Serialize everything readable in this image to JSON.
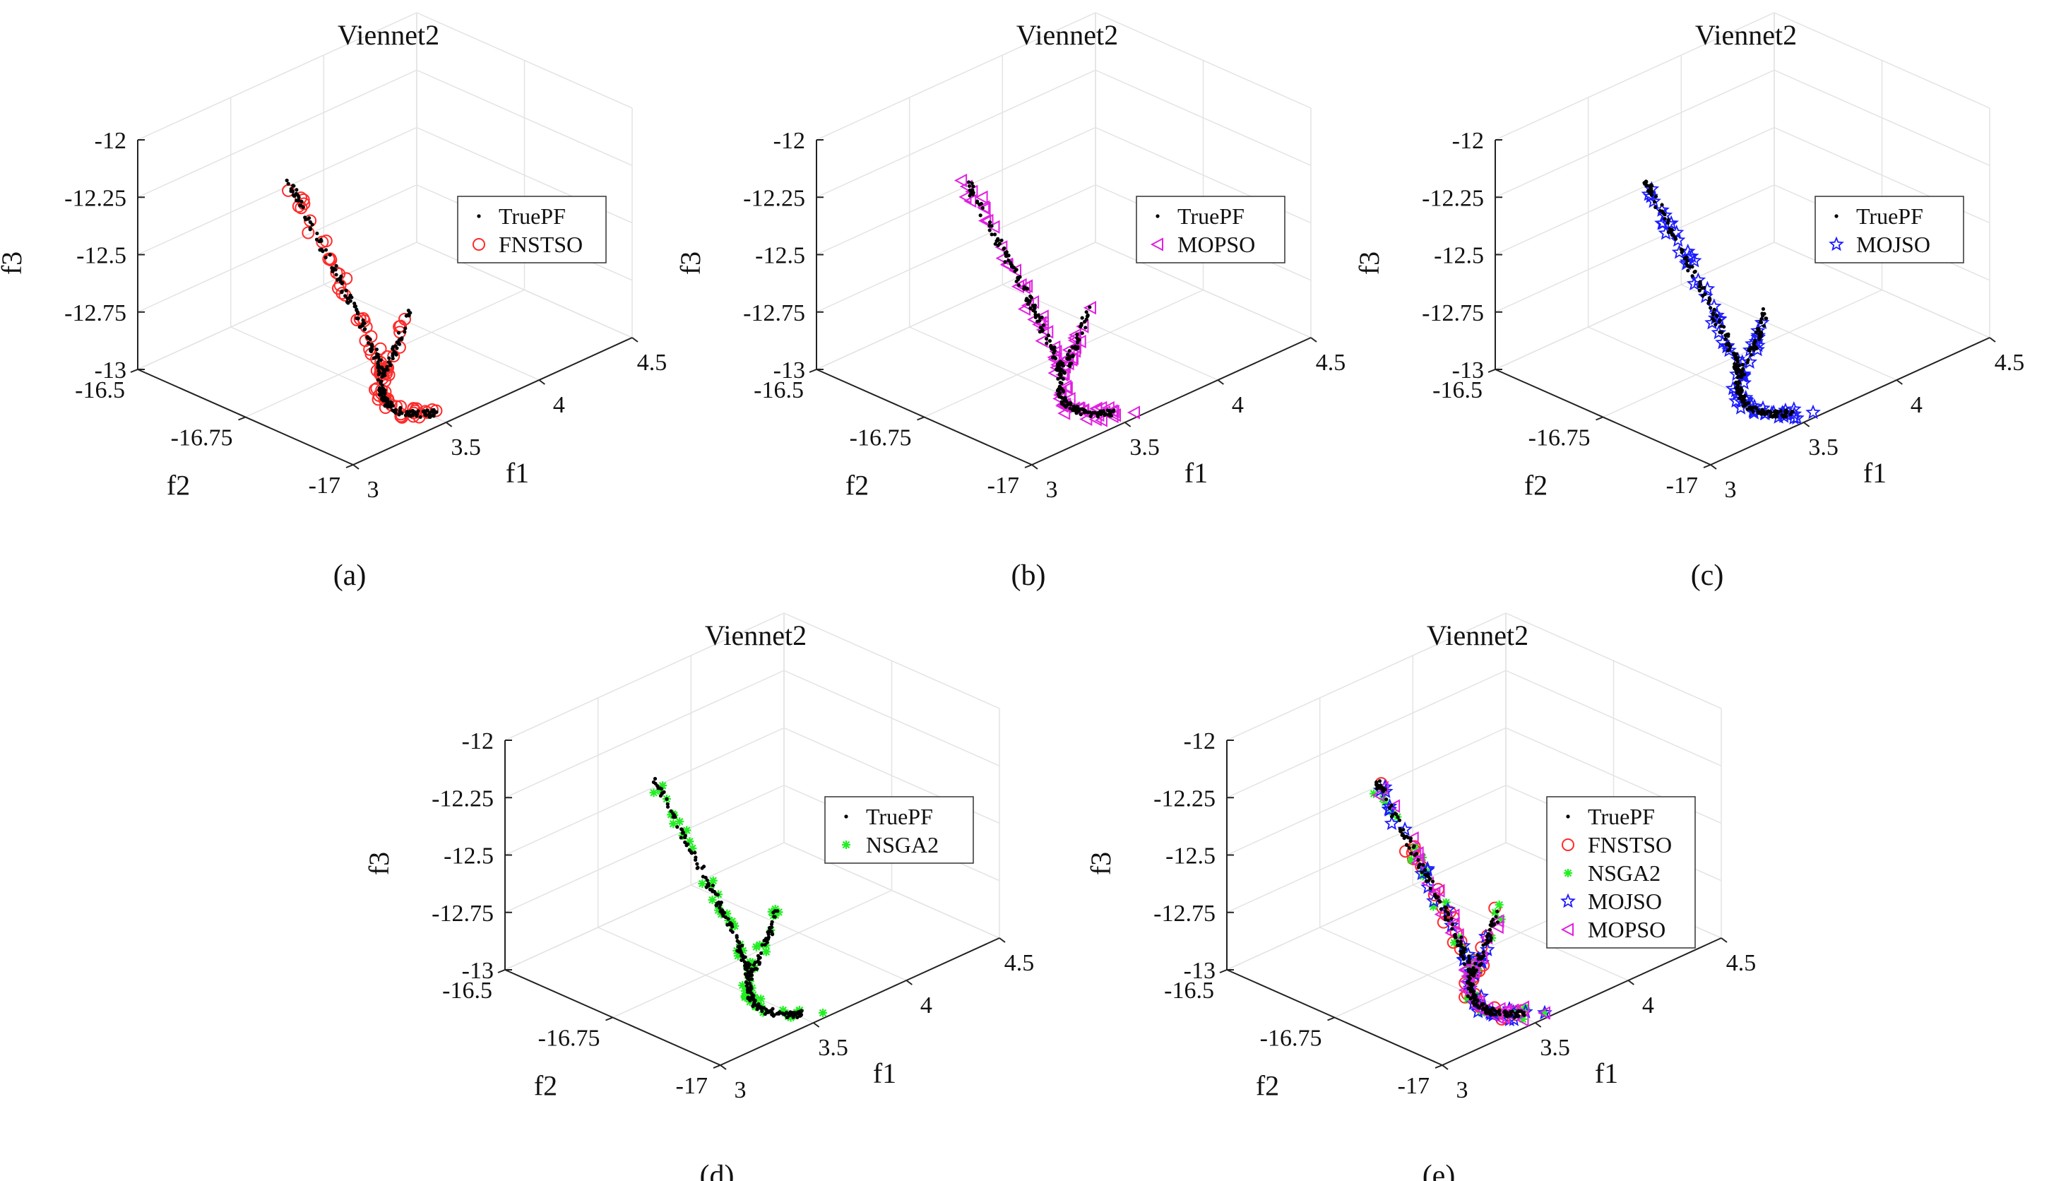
{
  "figure": {
    "captions": [
      "(a)",
      "(b)",
      "(c)",
      "(d)",
      "(e)"
    ]
  },
  "styles": {
    "TruePF": {
      "color": "#000000",
      "marker": "dot"
    },
    "FNSTSO": {
      "color": "#ff2a2a",
      "marker": "circle"
    },
    "MOPSO": {
      "color": "#e020e0",
      "marker": "triangle-left"
    },
    "MOJSO": {
      "color": "#1c1cff",
      "marker": "star"
    },
    "NSGA2": {
      "color": "#22ee22",
      "marker": "asterisk"
    }
  },
  "chart_data": [
    {
      "type": "scatter3d",
      "title": "Viennet2",
      "caption": "(a)",
      "xlabel": "f1",
      "ylabel": "f2",
      "zlabel": "f3",
      "xlim": [
        3,
        4.5
      ],
      "ylim": [
        -17,
        -16.5
      ],
      "zlim": [
        -13,
        -12
      ],
      "xticks": [
        "3",
        "3.5",
        "4",
        "4.5"
      ],
      "yticks": [
        "-17",
        "-16.75",
        "-16.5"
      ],
      "zticks": [
        "-13",
        "-12.75",
        "-12.5",
        "-12.25",
        "-12"
      ],
      "grid": true,
      "legend_position": "right",
      "series": [
        {
          "name": "TruePF",
          "marker": "dot"
        },
        {
          "name": "FNSTSO",
          "marker": "circle"
        }
      ]
    },
    {
      "type": "scatter3d",
      "title": "Viennet2",
      "caption": "(b)",
      "xlabel": "f1",
      "ylabel": "f2",
      "zlabel": "f3",
      "xlim": [
        3,
        4.5
      ],
      "ylim": [
        -17,
        -16.5
      ],
      "zlim": [
        -13,
        -12
      ],
      "xticks": [
        "3",
        "3.5",
        "4",
        "4.5"
      ],
      "yticks": [
        "-17",
        "-16.75",
        "-16.5"
      ],
      "zticks": [
        "-13",
        "-12.75",
        "-12.5",
        "-12.25",
        "-12"
      ],
      "grid": true,
      "legend_position": "right",
      "series": [
        {
          "name": "TruePF",
          "marker": "dot"
        },
        {
          "name": "MOPSO",
          "marker": "triangle-left"
        }
      ]
    },
    {
      "type": "scatter3d",
      "title": "Viennet2",
      "caption": "(c)",
      "xlabel": "f1",
      "ylabel": "f2",
      "zlabel": "f3",
      "xlim": [
        3,
        4.5
      ],
      "ylim": [
        -17,
        -16.5
      ],
      "zlim": [
        -13,
        -12
      ],
      "xticks": [
        "3",
        "3.5",
        "4",
        "4.5"
      ],
      "yticks": [
        "-17",
        "-16.75",
        "-16.5"
      ],
      "zticks": [
        "-13",
        "-12.75",
        "-12.5",
        "-12.25",
        "-12"
      ],
      "grid": true,
      "legend_position": "right",
      "series": [
        {
          "name": "TruePF",
          "marker": "dot"
        },
        {
          "name": "MOJSO",
          "marker": "star"
        }
      ]
    },
    {
      "type": "scatter3d",
      "title": "Viennet2",
      "caption": "(d)",
      "xlabel": "f1",
      "ylabel": "f2",
      "zlabel": "f3",
      "xlim": [
        3,
        4.5
      ],
      "ylim": [
        -17,
        -16.5
      ],
      "zlim": [
        -13,
        -12
      ],
      "xticks": [
        "3",
        "3.5",
        "4",
        "4.5"
      ],
      "yticks": [
        "-17",
        "-16.75",
        "-16.5"
      ],
      "zticks": [
        "-13",
        "-12.75",
        "-12.5",
        "-12.25",
        "-12"
      ],
      "grid": true,
      "legend_position": "right",
      "series": [
        {
          "name": "TruePF",
          "marker": "dot"
        },
        {
          "name": "NSGA2",
          "marker": "asterisk"
        }
      ]
    },
    {
      "type": "scatter3d",
      "title": "Viennet2",
      "caption": "(e)",
      "xlabel": "f1",
      "ylabel": "f2",
      "zlabel": "f3",
      "xlim": [
        3,
        4.5
      ],
      "ylim": [
        -17,
        -16.5
      ],
      "zlim": [
        -13,
        -12
      ],
      "xticks": [
        "3",
        "3.5",
        "4",
        "4.5"
      ],
      "yticks": [
        "-17",
        "-16.75",
        "-16.5"
      ],
      "zticks": [
        "-13",
        "-12.75",
        "-12.5",
        "-12.25",
        "-12"
      ],
      "grid": true,
      "legend_position": "right",
      "series": [
        {
          "name": "TruePF",
          "marker": "dot"
        },
        {
          "name": "FNSTSO",
          "marker": "circle"
        },
        {
          "name": "NSGA2",
          "marker": "asterisk"
        },
        {
          "name": "MOJSO",
          "marker": "star"
        },
        {
          "name": "MOPSO",
          "marker": "triangle-left"
        }
      ]
    }
  ]
}
